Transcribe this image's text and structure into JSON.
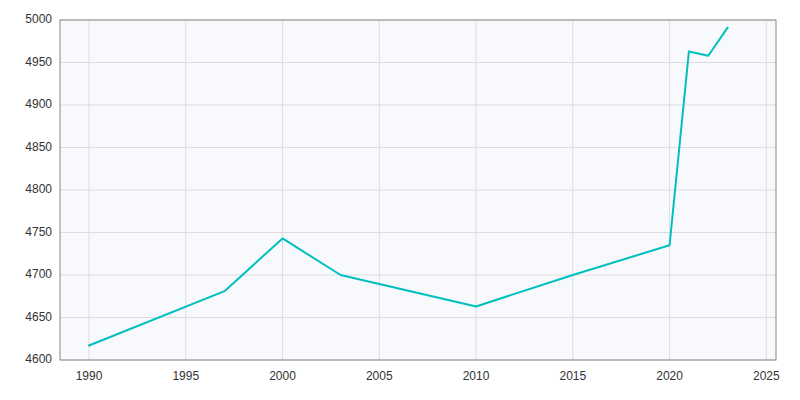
{
  "chart_data": {
    "type": "line",
    "x": [
      1990,
      1997,
      2000,
      2003,
      2010,
      2015,
      2020,
      2021,
      2022,
      2023
    ],
    "values": [
      4617,
      4681,
      4743,
      4700,
      4663,
      4700,
      4735,
      4963,
      4958,
      4991
    ],
    "color": "#00BFBF",
    "xlim": [
      1988.5,
      2025.5
    ],
    "ylim": [
      4600,
      5000
    ],
    "xticks": [
      1990,
      1995,
      2000,
      2005,
      2010,
      2015,
      2020,
      2025
    ],
    "yticks": [
      4600,
      4650,
      4700,
      4750,
      4800,
      4850,
      4900,
      4950,
      5000
    ],
    "grid": true
  }
}
